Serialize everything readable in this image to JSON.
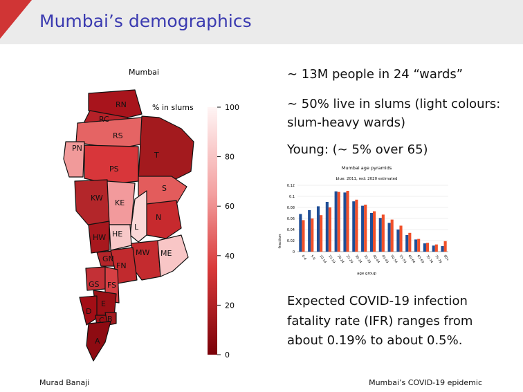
{
  "slide": {
    "title": "Mumbai’s demographics",
    "author": "Murad Banaji",
    "talk_title": "Mumbai’s COVID-19 epidemic"
  },
  "map": {
    "title": "Mumbai",
    "legend_title": "% in slums",
    "colorbar_ticks": [
      "100",
      "80",
      "60",
      "40",
      "20",
      "0"
    ],
    "ward_labels": [
      "RN",
      "RC",
      "RS",
      "PN",
      "T",
      "PS",
      "S",
      "KW",
      "KE",
      "N",
      "L",
      "HW",
      "HE",
      "MW",
      "ME",
      "GN",
      "FN",
      "GS",
      "FS",
      "E",
      "D",
      "C",
      "B",
      "A"
    ]
  },
  "bullets": {
    "b1": "∼ 13M people in 24 “wards”",
    "b2": "∼ 50% live in slums (light colours: slum-heavy wards)",
    "b3": "Young: (∼ 5% over 65)",
    "b4": "Expected COVID-19 infection fatality rate (IFR) ranges from about 0.19% to about 0.5%."
  },
  "colors": {
    "title": "#3a3ab0",
    "series_2011": "#1f4e96",
    "series_2020": "#f0502a",
    "corner": "#d03535"
  },
  "chart_data": {
    "type": "bar",
    "title": "Mumbai age pyramids",
    "subtitle": "blue: 2011, red: 2020 estimated",
    "xlabel": "age group",
    "ylabel": "fraction",
    "ylim": [
      0,
      0.12
    ],
    "yticks": [
      "0",
      "0.02",
      "0.04",
      "0.06",
      "0.08",
      "0.1",
      "0.12"
    ],
    "categories": [
      "0-4",
      "5-9",
      "10-14",
      "15-19",
      "20-24",
      "25-29",
      "30-34",
      "35-39",
      "40-44",
      "45-49",
      "50-54",
      "55-59",
      "60-64",
      "65-69",
      "70-74",
      "75-79",
      "80+"
    ],
    "series": [
      {
        "values": [
          0.068,
          0.075,
          0.082,
          0.09,
          0.109,
          0.107,
          0.091,
          0.083,
          0.07,
          0.061,
          0.052,
          0.04,
          0.03,
          0.022,
          0.015,
          0.011,
          0.01
        ]
      },
      {
        "values": [
          0.057,
          0.06,
          0.066,
          0.08,
          0.108,
          0.11,
          0.094,
          0.085,
          0.073,
          0.067,
          0.058,
          0.047,
          0.034,
          0.023,
          0.016,
          0.013,
          0.019
        ]
      }
    ]
  }
}
